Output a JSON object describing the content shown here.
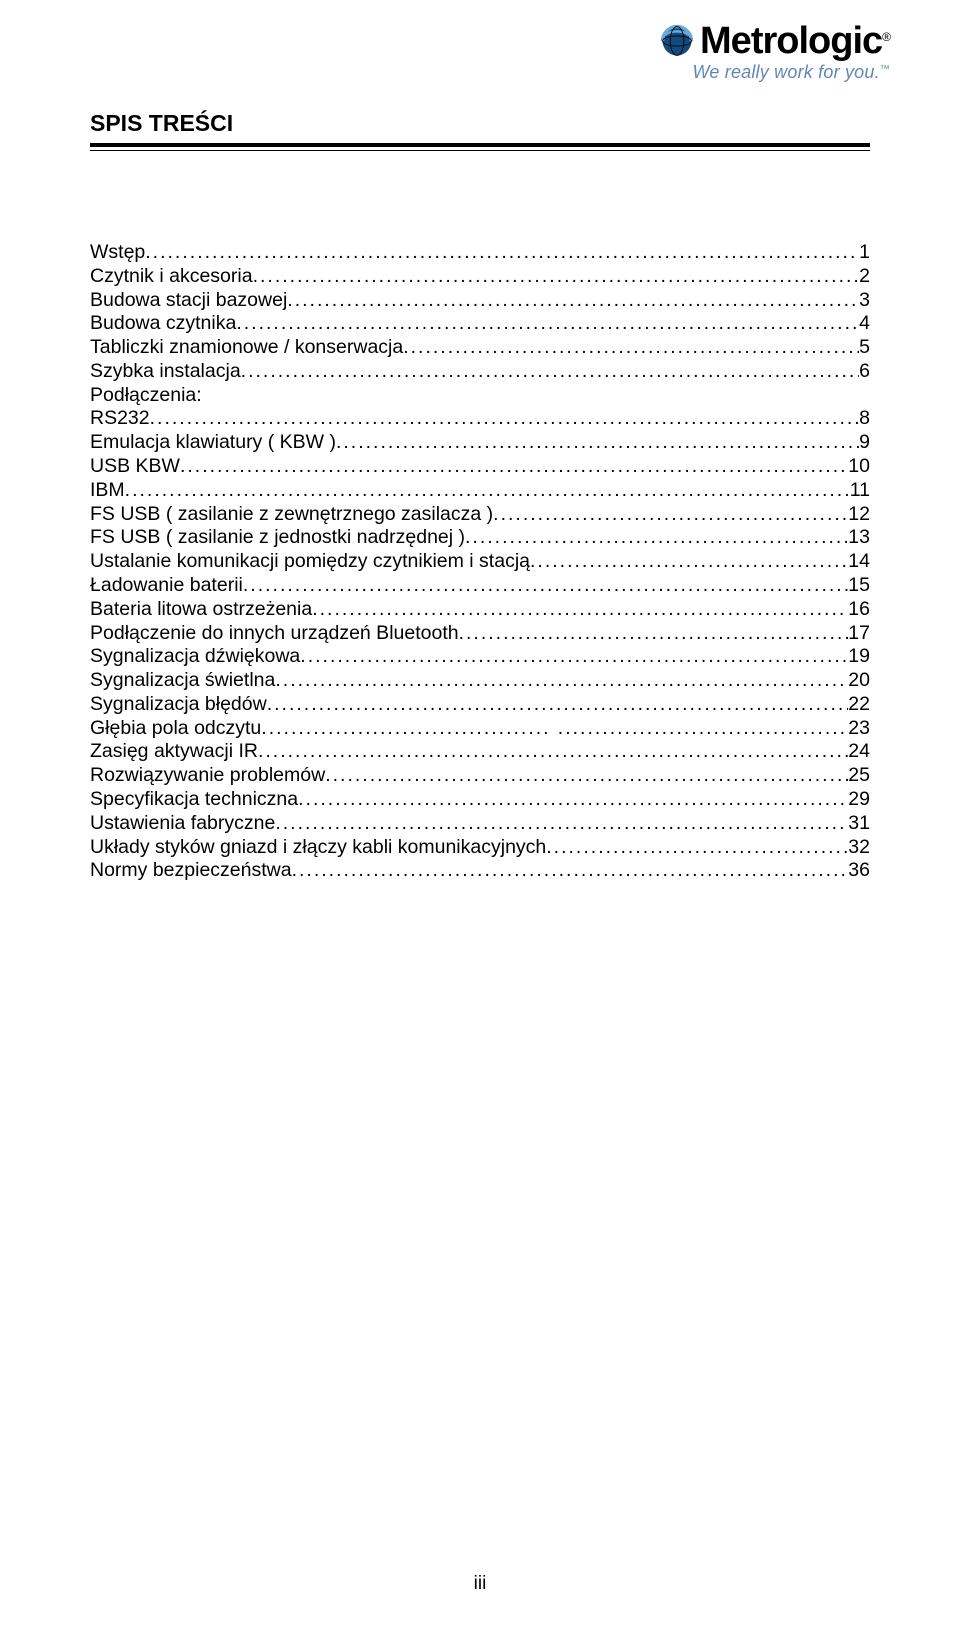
{
  "brand": {
    "name": "Metrologic",
    "registered": "®",
    "tagline": "We really work for you.",
    "tm": "™"
  },
  "section_title": "SPIS TREŚCI",
  "toc": [
    {
      "label": "Wstęp",
      "page": "1"
    },
    {
      "label": "Czytnik i akcesoria",
      "page": "2"
    },
    {
      "label": "Budowa stacji bazowej",
      "page": "3"
    },
    {
      "label": "Budowa czytnika",
      "page": "4"
    },
    {
      "label": "Tabliczki znamionowe / konserwacja",
      "page": "5"
    },
    {
      "label": "Szybka instalacja",
      "page": "6"
    },
    {
      "label": "Podłączenia:",
      "page": ""
    },
    {
      "label": "RS232",
      "page": "8"
    },
    {
      "label": "Emulacja  klawiatury ( KBW )",
      "page": "9"
    },
    {
      "label": "USB KBW",
      "page": "10"
    },
    {
      "label": "IBM",
      "page": "11"
    },
    {
      "label": "FS USB ( zasilanie z zewnętrznego zasilacza  )",
      "page": "12"
    },
    {
      "label": "FS USB ( zasilanie z jednostki nadrzędnej )",
      "page": "13"
    },
    {
      "label": "Ustalanie komunikacji pomiędzy czytnikiem i stacją",
      "page": "14"
    },
    {
      "label": "Ładowanie baterii",
      "page": "15"
    },
    {
      "label": "Bateria litowa ostrzeżenia",
      "page": "16"
    },
    {
      "label": "Podłączenie do innych urządzeń Bluetooth",
      "page": "17"
    },
    {
      "label": "Sygnalizacja dźwiękowa",
      "page": "19"
    },
    {
      "label": "Sygnalizacja świetlna",
      "page": "20"
    },
    {
      "label": "Sygnalizacja błędów",
      "page": "22"
    },
    {
      "label": "Głębia pola odczytu",
      "page": "23",
      "split_leader": true
    },
    {
      "label": "Zasięg aktywacji IR",
      "page": "24"
    },
    {
      "label": "Rozwiązywanie problemów",
      "page": "25"
    },
    {
      "label": "Specyfikacja techniczna",
      "page": "29"
    },
    {
      "label": "Ustawienia fabryczne",
      "page": "31"
    },
    {
      "label": "Układy styków gniazd i złączy kabli komunikacyjnych",
      "page": "32"
    },
    {
      "label": "Normy bezpieczeństwa",
      "page": "36"
    }
  ],
  "page_number": "iii",
  "colors": {
    "tagline": "#6386b5",
    "globe_dark": "#154a7c",
    "globe_light": "#6aa9d8"
  }
}
